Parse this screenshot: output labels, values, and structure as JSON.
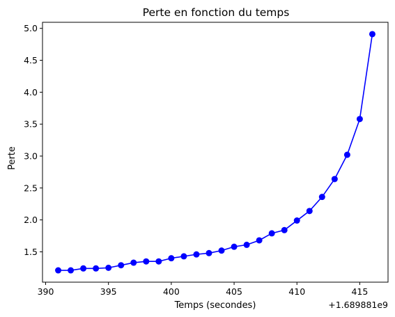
{
  "chart_data": {
    "type": "line",
    "title": "Perte en fonction du temps",
    "xlabel": "Temps (secondes)",
    "ylabel": "Perte",
    "x_offset_label": "+1.689881e9",
    "xlim": [
      389.75,
      417.25
    ],
    "ylim": [
      1.025,
      5.095
    ],
    "x_ticks": [
      390,
      395,
      400,
      405,
      410,
      415
    ],
    "x_tick_labels": [
      "390",
      "395",
      "400",
      "405",
      "410",
      "415"
    ],
    "y_ticks": [
      1.5,
      2.0,
      2.5,
      3.0,
      3.5,
      4.0,
      4.5,
      5.0
    ],
    "y_tick_labels": [
      "1.5",
      "2.0",
      "2.5",
      "3.0",
      "3.5",
      "4.0",
      "4.5",
      "5.0"
    ],
    "grid": false,
    "series": [
      {
        "color": "#0000ff",
        "marker": "circle",
        "x": [
          391,
          392,
          393,
          394,
          395,
          396,
          397,
          398,
          399,
          400,
          401,
          402,
          403,
          404,
          405,
          406,
          407,
          408,
          409,
          410,
          411,
          412,
          413,
          414,
          415,
          416
        ],
        "y": [
          1.21,
          1.21,
          1.24,
          1.24,
          1.25,
          1.29,
          1.33,
          1.35,
          1.35,
          1.4,
          1.43,
          1.46,
          1.48,
          1.52,
          1.58,
          1.61,
          1.68,
          1.79,
          1.84,
          1.99,
          2.14,
          2.36,
          2.64,
          3.02,
          3.58,
          4.91
        ]
      }
    ]
  }
}
